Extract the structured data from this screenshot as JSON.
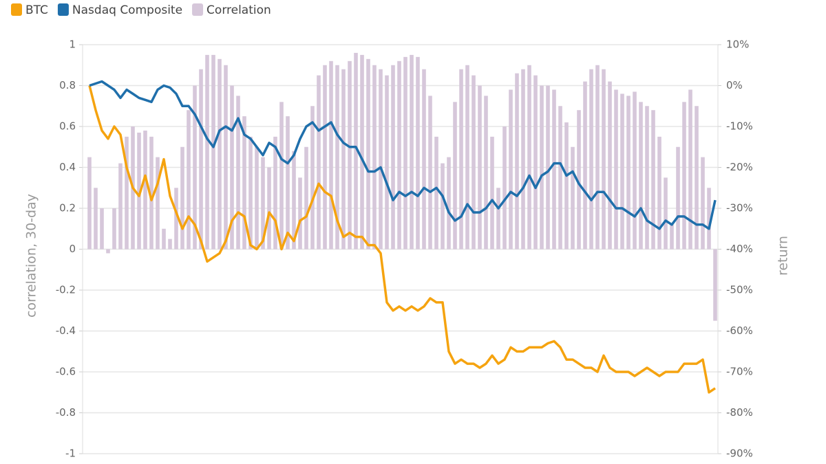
{
  "chart_data": {
    "type": "combo",
    "y_label": "correlation, 30-day",
    "y2_label": "return",
    "ylim": [
      -1,
      1
    ],
    "yticks": [
      -1,
      -0.8,
      -0.6,
      -0.4,
      -0.2,
      0,
      0.2,
      0.4,
      0.6,
      0.8,
      1
    ],
    "y2lim": [
      -90,
      10
    ],
    "y2ticks": [
      {
        "value": -90,
        "label": "-90%"
      },
      {
        "value": -80,
        "label": "-80%"
      },
      {
        "value": -70,
        "label": "-70%"
      },
      {
        "value": -60,
        "label": "-60%"
      },
      {
        "value": -50,
        "label": "-50%"
      },
      {
        "value": -40,
        "label": "-40%"
      },
      {
        "value": -30,
        "label": "-30%"
      },
      {
        "value": -20,
        "label": "-20%"
      },
      {
        "value": -10,
        "label": "-10%"
      },
      {
        "value": 0,
        "label": "0%"
      },
      {
        "value": 10,
        "label": "10%"
      }
    ],
    "grid": true,
    "legend": "top-left",
    "series": [
      {
        "name": "BTC",
        "type": "line",
        "axis": "y2",
        "color": "#f5a30f",
        "values": [
          0,
          -6,
          -11,
          -13,
          -10,
          -12,
          -20,
          -25,
          -27,
          -22,
          -28,
          -24,
          -18,
          -27,
          -31,
          -35,
          -32,
          -34,
          -38,
          -43,
          -42,
          -41,
          -38,
          -33,
          -31,
          -32,
          -39,
          -40,
          -38,
          -31,
          -33,
          -40,
          -36,
          -38,
          -33,
          -32,
          -28,
          -24,
          -26,
          -27,
          -33,
          -37,
          -36,
          -37,
          -37,
          -39,
          -39,
          -41,
          -53,
          -55,
          -54,
          -55,
          -54,
          -55,
          -54,
          -52,
          -53,
          -53,
          -65,
          -68,
          -67,
          -68,
          -68,
          -69,
          -68,
          -66,
          -68,
          -67,
          -64,
          -65,
          -65,
          -64,
          -64,
          -64,
          -63,
          -62.5,
          -64,
          -67,
          -67,
          -68,
          -69,
          -69,
          -70,
          -66,
          -69,
          -70,
          -70,
          -70,
          -71,
          -70,
          -69,
          -70,
          -71,
          -70,
          -70,
          -70,
          -68,
          -68,
          -68,
          -67,
          -75,
          -74
        ]
      },
      {
        "name": "Nasdaq Composite",
        "type": "line",
        "axis": "y2",
        "color": "#1f6fab",
        "values": [
          0,
          0.5,
          1,
          0,
          -1,
          -3,
          -1,
          -2,
          -3,
          -3.5,
          -4,
          -1,
          0,
          -0.5,
          -2,
          -5,
          -5,
          -7,
          -10,
          -13,
          -15,
          -11,
          -10,
          -11,
          -8,
          -12,
          -13,
          -15,
          -17,
          -14,
          -15,
          -18,
          -19,
          -17,
          -13,
          -10,
          -9,
          -11,
          -10,
          -9,
          -12,
          -14,
          -15,
          -15,
          -18,
          -21,
          -21,
          -20,
          -24,
          -28,
          -26,
          -27,
          -26,
          -27,
          -25,
          -26,
          -25,
          -27,
          -31,
          -33,
          -32,
          -29,
          -31,
          -31,
          -30,
          -28,
          -30,
          -28,
          -26,
          -27,
          -25,
          -22,
          -25,
          -22,
          -21,
          -19,
          -19,
          -22,
          -21,
          -24,
          -26,
          -28,
          -26,
          -26,
          -28,
          -30,
          -30,
          -31,
          -32,
          -30,
          -33,
          -34,
          -35,
          -33,
          -34,
          -32,
          -32,
          -33,
          -34,
          -34,
          -35,
          -28
        ]
      },
      {
        "name": "Correlation",
        "type": "bar",
        "color": "#d6c7da",
        "values": [
          0.45,
          0.3,
          0.2,
          -0.02,
          0.2,
          0.42,
          0.55,
          0.6,
          0.57,
          0.58,
          0.55,
          0.45,
          0.1,
          0.05,
          0.3,
          0.5,
          0.68,
          0.8,
          0.88,
          0.95,
          0.95,
          0.93,
          0.9,
          0.8,
          0.75,
          0.65,
          0.55,
          0.5,
          0.45,
          0.4,
          0.55,
          0.72,
          0.65,
          0.48,
          0.35,
          0.5,
          0.7,
          0.85,
          0.9,
          0.92,
          0.9,
          0.88,
          0.92,
          0.96,
          0.95,
          0.93,
          0.9,
          0.88,
          0.85,
          0.9,
          0.92,
          0.94,
          0.95,
          0.94,
          0.88,
          0.75,
          0.55,
          0.42,
          0.45,
          0.72,
          0.88,
          0.9,
          0.85,
          0.8,
          0.75,
          0.55,
          0.3,
          0.6,
          0.78,
          0.86,
          0.88,
          0.9,
          0.85,
          0.8,
          0.8,
          0.78,
          0.7,
          0.62,
          0.5,
          0.68,
          0.82,
          0.88,
          0.9,
          0.88,
          0.82,
          0.78,
          0.76,
          0.75,
          0.77,
          0.72,
          0.7,
          0.68,
          0.55,
          0.35,
          0.12,
          0.5,
          0.72,
          0.78,
          0.7,
          0.45,
          0.3,
          -0.35
        ]
      }
    ]
  }
}
